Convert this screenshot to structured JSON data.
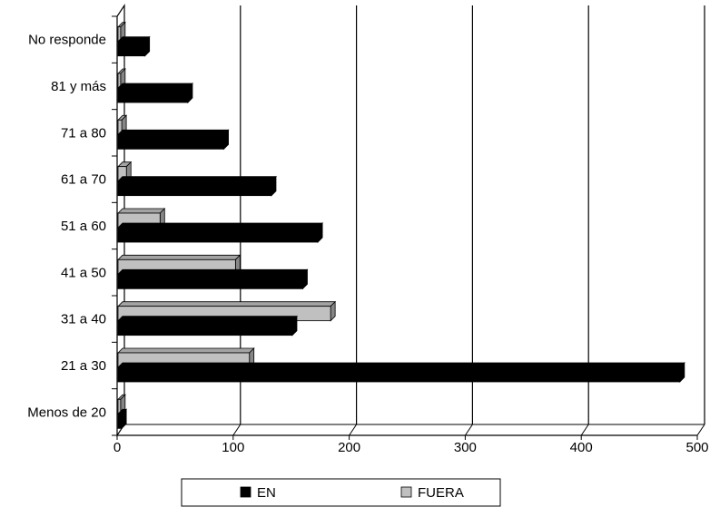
{
  "chart_data": {
    "type": "bar",
    "orientation": "horizontal",
    "style": "3d",
    "categories": [
      "Menos de 20",
      "21 a 30",
      "31 a 40",
      "41 a 50",
      "51 a 60",
      "61 a 70",
      "71 a 80",
      "81 y más",
      "No responde"
    ],
    "series": [
      {
        "name": "EN",
        "color": "#000000",
        "values": [
          4,
          485,
          151,
          160,
          173,
          133,
          92,
          61,
          24
        ]
      },
      {
        "name": "FUERA",
        "color": "#c0c0c0",
        "values": [
          3,
          114,
          184,
          102,
          37,
          8,
          4,
          3,
          3
        ]
      }
    ],
    "xlim": [
      0,
      500
    ],
    "xticks": [
      "0",
      "100",
      "200",
      "300",
      "400",
      "500"
    ],
    "grid": "vertical",
    "legend": "bottom",
    "title": "",
    "xlabel": "",
    "ylabel": ""
  }
}
